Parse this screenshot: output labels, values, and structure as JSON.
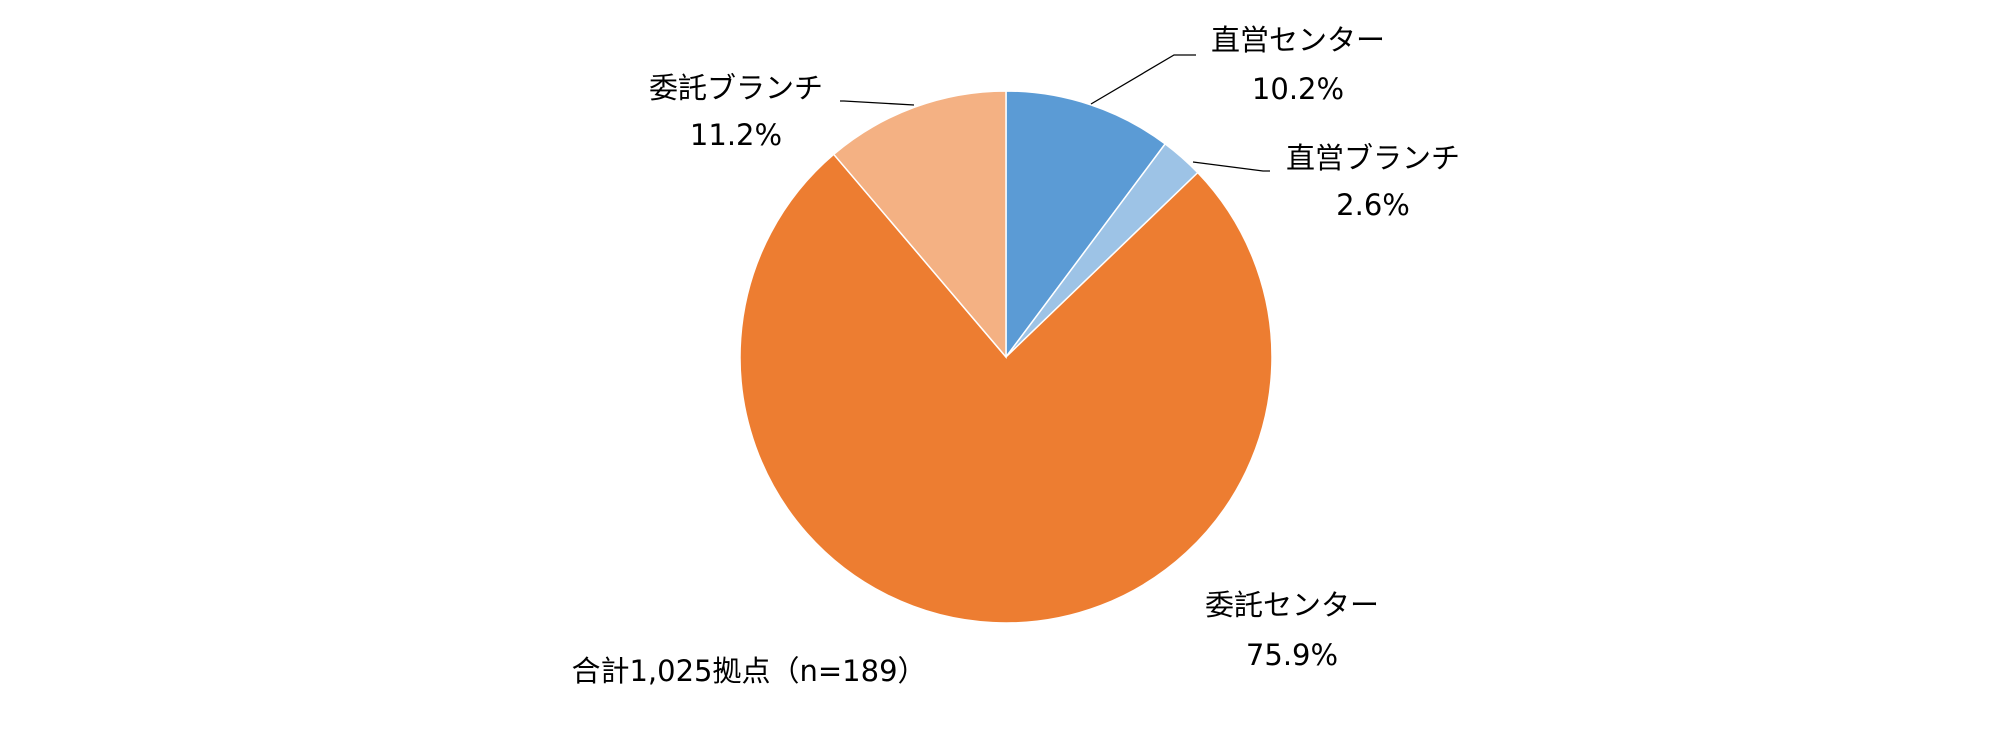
{
  "chart_data": {
    "type": "pie",
    "categories": [
      "直営センター",
      "直営ブランチ",
      "委託センター",
      "委託ブランチ"
    ],
    "values": [
      10.2,
      2.6,
      75.9,
      11.2
    ],
    "value_labels": [
      "10.2%",
      "2.6%",
      "75.9%",
      "11.2%"
    ],
    "colors": [
      "#5b9bd5",
      "#9dc3e6",
      "#ed7d31",
      "#f4b183"
    ],
    "annotation": "合計1,025拠点（n=189）"
  }
}
